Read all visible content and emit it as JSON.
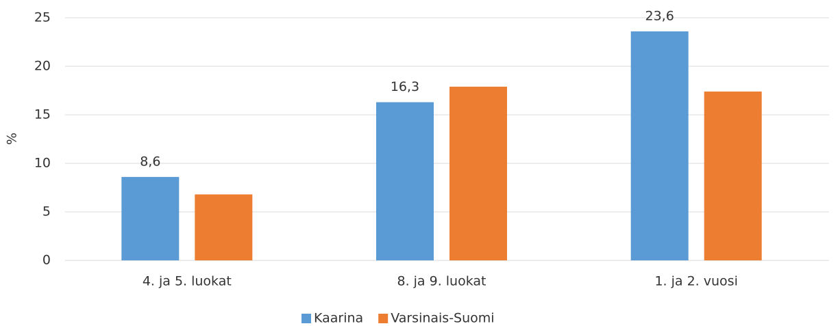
{
  "chart_data": {
    "type": "bar",
    "ylabel": "%",
    "categories": [
      "4. ja 5. luokat",
      "8. ja 9. luokat",
      "1. ja 2. vuosi"
    ],
    "series": [
      {
        "name": "Kaarina",
        "color": "#5b9bd5",
        "values": [
          8.6,
          16.3,
          23.6
        ],
        "value_labels": [
          "8,6",
          "16,3",
          "23,6"
        ]
      },
      {
        "name": "Varsinais-Suomi",
        "color": "#ed7d31",
        "values": [
          6.8,
          17.9,
          17.4
        ]
      }
    ],
    "ylim": [
      0,
      25
    ],
    "yticks": [
      0,
      5,
      10,
      15,
      20,
      25
    ],
    "grid": true,
    "legend": "bottom"
  }
}
